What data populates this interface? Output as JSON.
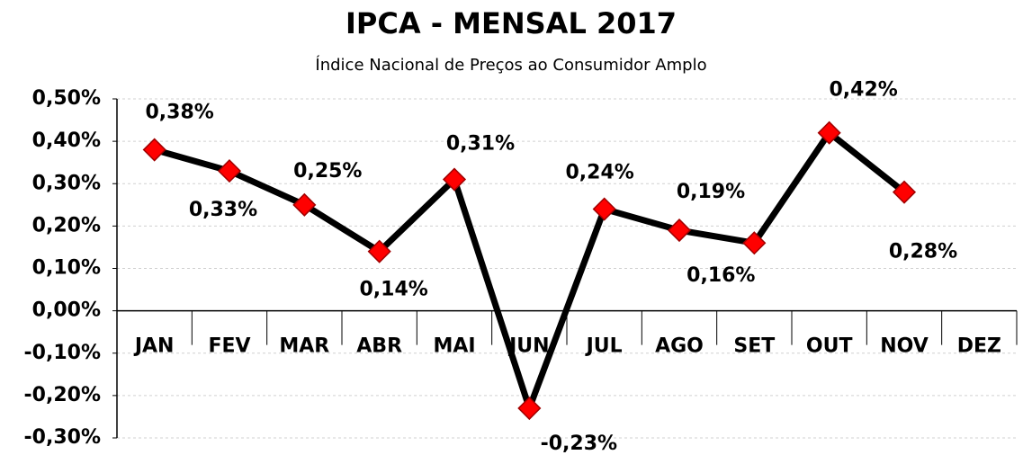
{
  "chart_data": {
    "type": "line",
    "title": "IPCA - MENSAL 2017",
    "subtitle": "Índice Nacional de Preços ao Consumidor Amplo",
    "categories": [
      "JAN",
      "FEV",
      "MAR",
      "ABR",
      "MAI",
      "JUN",
      "JUL",
      "AGO",
      "SET",
      "OUT",
      "NOV",
      "DEZ"
    ],
    "values": [
      0.38,
      0.33,
      0.25,
      0.14,
      0.31,
      -0.23,
      0.24,
      0.19,
      0.16,
      0.42,
      0.28,
      null
    ],
    "value_labels": [
      "0,38%",
      "0,33%",
      "0,25%",
      "0,14%",
      "0,31%",
      "-0,23%",
      "0,24%",
      "0,19%",
      "0,16%",
      "0,42%",
      "0,28%",
      null
    ],
    "color": "#000000",
    "marker_color": "#ff0000",
    "ylim": [
      -0.3,
      0.5
    ],
    "yticks": [
      {
        "value": -0.3,
        "label": "-0,30%"
      },
      {
        "value": -0.2,
        "label": "-0,20%"
      },
      {
        "value": -0.1,
        "label": "-0,10%"
      },
      {
        "value": 0,
        "label": "0,00%"
      },
      {
        "value": 0.1,
        "label": "0,10%"
      },
      {
        "value": 0.2,
        "label": "0,20%"
      },
      {
        "value": 0.3,
        "label": "0,30%"
      },
      {
        "value": 0.4,
        "label": "0,40%"
      },
      {
        "value": 0.5,
        "label": "0,50%"
      }
    ],
    "grid": true
  }
}
